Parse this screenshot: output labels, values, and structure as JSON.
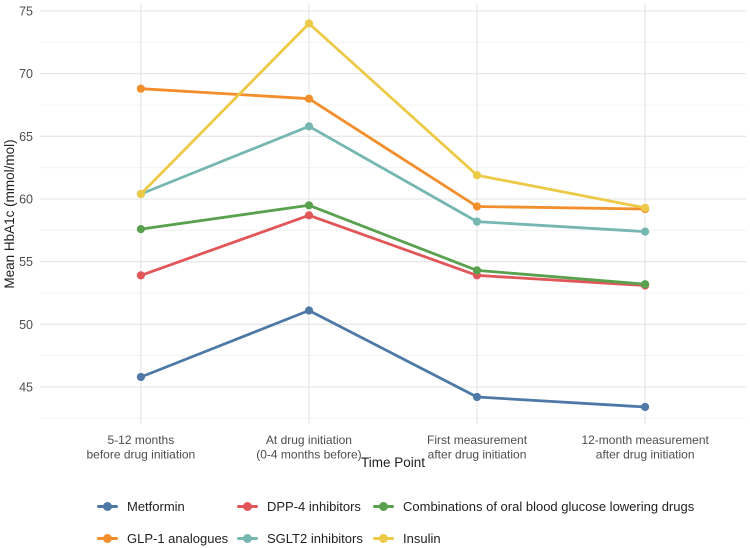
{
  "chart_data": {
    "type": "line",
    "title": "",
    "xlabel": "Time Point",
    "ylabel": "Mean HbA1c (mmol/mol)",
    "categories": [
      [
        "5-12 months",
        "before drug initiation"
      ],
      [
        "At drug initiation",
        "(0-4 months before)"
      ],
      [
        "First measurement",
        "after drug initiation"
      ],
      [
        "12-month measurement",
        "after drug initiation"
      ]
    ],
    "y_ticks": [
      45,
      50,
      55,
      60,
      65,
      70,
      75
    ],
    "y_minor_ticks": [
      42.5,
      47.5,
      52.5,
      57.5,
      62.5,
      67.5,
      72.5
    ],
    "ylim": [
      42.1,
      75.6
    ],
    "grid": true,
    "legend_position": "bottom",
    "series": [
      {
        "name": "Metformin",
        "color": "#4e79a7",
        "values": [
          45.8,
          51.1,
          44.2,
          43.4
        ]
      },
      {
        "name": "DPP-4 inhibitors",
        "color": "#e15759",
        "values": [
          53.9,
          58.7,
          53.9,
          53.1
        ]
      },
      {
        "name": "Combinations of oral blood glucose lowering drugs",
        "color": "#59a14f",
        "values": [
          57.6,
          59.5,
          54.3,
          53.2
        ]
      },
      {
        "name": "GLP-1 analogues",
        "color": "#f28e2b",
        "values": [
          68.8,
          68.0,
          59.4,
          59.2
        ]
      },
      {
        "name": "SGLT2 inhibitors",
        "color": "#76b7b2",
        "values": [
          60.4,
          65.8,
          58.2,
          57.4
        ]
      },
      {
        "name": "Insulin",
        "color": "#edc948",
        "values": [
          60.4,
          74.0,
          61.9,
          59.3
        ]
      }
    ],
    "colors": {
      "grid_major": "#e4e4e4",
      "grid_minor": "#f0f0f0",
      "tick_text": "#4d4d4d",
      "axis_title_text": "#1f1f1f"
    }
  }
}
